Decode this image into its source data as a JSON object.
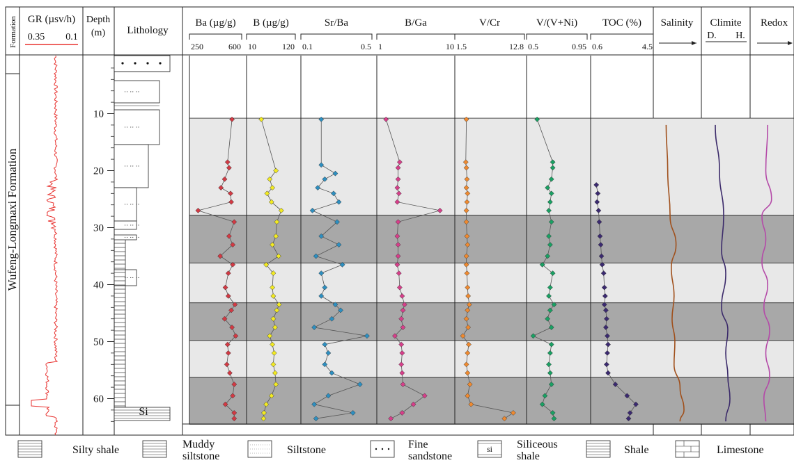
{
  "headers": {
    "formation": "Formation",
    "gr": "GR (µsv/h)",
    "gr_left": "0.35",
    "gr_right": "0.1",
    "depth": "Depth",
    "depth_unit": "(m)",
    "lithology": "Lithology",
    "salinity": "Salinity",
    "climate": "Climite",
    "climate_d": "D.",
    "climate_h": "H.",
    "redox": "Redox"
  },
  "formation_name": "Wufeng-Longmaxi Formation",
  "depth_ticks": [
    "10",
    "20",
    "30",
    "40",
    "50",
    "60"
  ],
  "lithology_si_label": "Si",
  "colors": {
    "ba": "#d23a44",
    "b": "#f2ea22",
    "srba": "#2e8fc0",
    "bga": "#d63f8a",
    "vcr": "#ef8a30",
    "vvni": "#1aa063",
    "toc": "#3b2a70",
    "gr": "#e8322f",
    "salinity": "#a0501c",
    "climate": "#3b2a6a",
    "redox": "#b44aa8",
    "band_light": "#e8e8e8",
    "band_dark": "#a8a8a8"
  },
  "legend": [
    {
      "label": "Silty shale",
      "pattern": "silty-shale"
    },
    {
      "label": "Muddy siltstone",
      "pattern": "muddy-siltstone"
    },
    {
      "label": "Siltstone",
      "pattern": "siltstone"
    },
    {
      "label": "Fine sandstone",
      "pattern": "fine-sandstone"
    },
    {
      "label": "Siliceous shale",
      "pattern": "siliceous-shale"
    },
    {
      "label": "Shale",
      "pattern": "shale"
    },
    {
      "label": "Limestone",
      "pattern": "limestone"
    }
  ],
  "chart_data": {
    "type": "line",
    "y_axis": {
      "label": "Depth (m)",
      "ticks": [
        10,
        20,
        30,
        40,
        50,
        60
      ]
    },
    "bands": [
      {
        "from": 10.8,
        "to": 27.8,
        "tone": "light"
      },
      {
        "from": 27.8,
        "to": 36.2,
        "tone": "dark"
      },
      {
        "from": 36.2,
        "to": 43.2,
        "tone": "light"
      },
      {
        "from": 43.2,
        "to": 49.8,
        "tone": "dark"
      },
      {
        "from": 49.8,
        "to": 56.3,
        "tone": "light"
      },
      {
        "from": 56.3,
        "to": 64.5,
        "tone": "dark"
      }
    ],
    "series": [
      {
        "key": "ba",
        "name": "Ba (µg/g)",
        "range": [
          250,
          600
        ],
        "tick_left": "250",
        "tick_right": "600",
        "depth": [
          11,
          18.5,
          19.5,
          21.5,
          23,
          24,
          25.5,
          27,
          29,
          31.5,
          33,
          35,
          36.5,
          38,
          40.5,
          42,
          43.5,
          44.5,
          46,
          47.5,
          49,
          50.5,
          52,
          54,
          55.5,
          57.5,
          59.5,
          61,
          62.5,
          63.5
        ],
        "values": [
          520,
          490,
          500,
          470,
          445,
          510,
          515,
          290,
          535,
          500,
          525,
          440,
          525,
          495,
          475,
          495,
          540,
          515,
          470,
          520,
          545,
          490,
          495,
          485,
          505,
          535,
          525,
          475,
          535,
          535
        ]
      },
      {
        "key": "b",
        "name": "B (µg/g)",
        "range": [
          10,
          120
        ],
        "tick_left": "10",
        "tick_right": "120",
        "depth": [
          11,
          20,
          21.5,
          23,
          24,
          25.5,
          27,
          29,
          31.5,
          33,
          35,
          36.5,
          38,
          40.5,
          42,
          43.5,
          44.5,
          46,
          47.5,
          49,
          50.5,
          52,
          54,
          55.5,
          57.5,
          59.5,
          61,
          62.5,
          63.5
        ],
        "values": [
          37,
          70,
          56,
          62,
          50,
          60,
          82,
          72,
          70,
          62,
          76,
          48,
          64,
          62,
          64,
          77,
          72,
          64,
          68,
          56,
          62,
          66,
          64,
          68,
          70,
          60,
          48,
          43,
          42
        ]
      },
      {
        "key": "srba",
        "name": "Sr/Ba",
        "range": [
          0.1,
          0.5
        ],
        "tick_left": "0.1",
        "tick_right": "0.5",
        "depth": [
          11,
          19,
          20.5,
          21.5,
          23,
          24,
          25.5,
          27,
          29,
          31.5,
          33,
          35,
          36.5,
          38,
          40.5,
          42,
          43.5,
          44.5,
          46,
          47.5,
          49,
          50.5,
          52,
          54,
          55.5,
          57.5,
          59.5,
          61,
          62.5,
          63.5
        ],
        "values": [
          0.2,
          0.2,
          0.28,
          0.22,
          0.18,
          0.27,
          0.3,
          0.15,
          0.29,
          0.2,
          0.3,
          0.17,
          0.32,
          0.2,
          0.22,
          0.2,
          0.28,
          0.31,
          0.26,
          0.16,
          0.46,
          0.22,
          0.24,
          0.22,
          0.26,
          0.42,
          0.24,
          0.16,
          0.38,
          0.17
        ]
      },
      {
        "key": "bga",
        "name": "B/Ga",
        "range": [
          1,
          10
        ],
        "tick_left": "1",
        "tick_right": "10",
        "depth": [
          11,
          18.5,
          19.5,
          21.5,
          23,
          24,
          25.5,
          27,
          29,
          31.5,
          33,
          35,
          36.5,
          38,
          40.5,
          42,
          43.5,
          44.5,
          46,
          47.5,
          49,
          50.5,
          52,
          54,
          55.5,
          57.5,
          59.5,
          61,
          62.5,
          63.5
        ],
        "values": [
          1.8,
          3.5,
          3.3,
          3.3,
          3.2,
          3.4,
          3.2,
          8.5,
          3.3,
          3.2,
          3.3,
          3.3,
          3.2,
          3.4,
          3.5,
          3.8,
          4.1,
          3.9,
          3.7,
          3.9,
          2.9,
          3.7,
          3.8,
          3.7,
          3.8,
          3.9,
          6.6,
          5.2,
          3.8,
          2.4
        ]
      },
      {
        "key": "vcr",
        "name": "V/Cr",
        "range": [
          1.5,
          12.8
        ],
        "tick_left": "1.5",
        "tick_right": "12.8",
        "depth": [
          11,
          18.5,
          19.5,
          21.5,
          23,
          24,
          25.5,
          27,
          29,
          31.5,
          33,
          35,
          36.5,
          38,
          40.5,
          42,
          43.5,
          44.5,
          46,
          47.5,
          49,
          50.5,
          52,
          54,
          55.5,
          57.5,
          59.5,
          61,
          62.5,
          63.5
        ],
        "values": [
          3.0,
          2.9,
          3.0,
          3.1,
          3.0,
          3.2,
          3.1,
          3.0,
          3.0,
          3.1,
          3.2,
          3.0,
          3.0,
          3.1,
          3.2,
          3.3,
          3.5,
          3.2,
          3.0,
          3.3,
          2.4,
          3.4,
          3.2,
          3.0,
          3.2,
          3.6,
          3.2,
          3.8,
          11.0,
          9.5
        ]
      },
      {
        "key": "vvni",
        "name": "V/(V+Ni)",
        "range": [
          0.5,
          0.95
        ],
        "tick_left": "0.5",
        "tick_right": "0.95",
        "depth": [
          11,
          18.5,
          19.5,
          21.5,
          23,
          24,
          25.5,
          27,
          29,
          31.5,
          33,
          35,
          36.5,
          38,
          40.5,
          42,
          43.5,
          44.5,
          46,
          47.5,
          49,
          50.5,
          52,
          54,
          55.5,
          57.5,
          59.5,
          61,
          62.5,
          63.5
        ],
        "values": [
          0.56,
          0.68,
          0.68,
          0.67,
          0.64,
          0.67,
          0.66,
          0.65,
          0.67,
          0.65,
          0.66,
          0.64,
          0.6,
          0.68,
          0.66,
          0.65,
          0.69,
          0.66,
          0.64,
          0.67,
          0.53,
          0.67,
          0.66,
          0.65,
          0.66,
          0.67,
          0.62,
          0.6,
          0.68,
          0.69
        ]
      },
      {
        "key": "toc",
        "name": "TOC (%)",
        "range": [
          0.6,
          4.5
        ],
        "tick_left": "0.6",
        "tick_right": "4.5",
        "depth": [
          22.5,
          24,
          25.5,
          27,
          29,
          31.5,
          33,
          35,
          36.5,
          38,
          40.5,
          42,
          43.5,
          44.5,
          46,
          47.5,
          49,
          50.5,
          52,
          54,
          55.5,
          57.5,
          59.5,
          61,
          62.5,
          63.5
        ],
        "values": [
          0.8,
          0.9,
          0.85,
          0.95,
          1.0,
          1.05,
          1.1,
          1.15,
          1.2,
          1.3,
          1.35,
          1.4,
          1.35,
          1.45,
          1.5,
          1.45,
          1.55,
          1.6,
          1.55,
          1.5,
          1.6,
          2.1,
          2.9,
          3.5,
          3.1,
          3.0
        ]
      }
    ],
    "trends": {
      "salinity": {
        "depth": [
          12,
          20,
          28,
          33,
          37,
          42,
          46,
          50,
          54,
          58,
          62,
          64
        ],
        "pos": [
          0.2,
          0.24,
          0.3,
          0.45,
          0.33,
          0.4,
          0.35,
          0.42,
          0.4,
          0.55,
          0.65,
          0.55
        ]
      },
      "climate": {
        "depth": [
          12,
          20,
          28,
          34,
          38,
          44,
          48,
          52,
          56,
          60,
          64
        ],
        "pos": [
          0.25,
          0.35,
          0.45,
          0.4,
          0.5,
          0.4,
          0.55,
          0.5,
          0.55,
          0.6,
          0.5
        ]
      },
      "redox": {
        "depth": [
          12,
          20,
          25,
          28,
          32,
          36,
          40,
          44,
          48,
          52,
          56,
          60,
          64
        ],
        "pos": [
          0.35,
          0.3,
          0.45,
          0.2,
          0.3,
          0.2,
          0.35,
          0.25,
          0.4,
          0.3,
          0.4,
          0.25,
          0.3
        ]
      }
    },
    "gr_log": {
      "range": [
        0.35,
        0.1
      ]
    }
  }
}
